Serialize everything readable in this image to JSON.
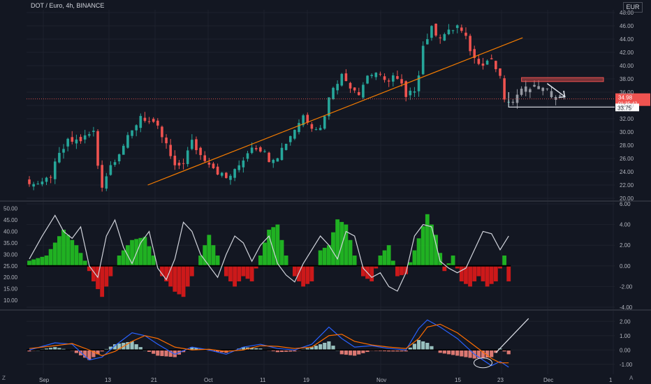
{
  "header": {
    "symbol_title": "DOT / Euro, 4h, BINANCE",
    "currency": "EUR",
    "left_corner": "Z",
    "right_corner": "A"
  },
  "colors": {
    "background": "#131722",
    "grid": "#1e222d",
    "up": "#26a69a",
    "down": "#ef5350",
    "trendline": "#f57c00",
    "hist_up": "#22c222",
    "hist_down": "#e11919",
    "osc_line": "#d1d4dc",
    "macd_line": "#2962ff",
    "signal_line": "#ff6d00"
  },
  "price_panel": {
    "y_ticks": [
      "48.00",
      "46.00",
      "44.00",
      "42.00",
      "40.00",
      "38.00",
      "36.00",
      "34.00",
      "32.00",
      "30.00",
      "28.00",
      "26.00",
      "24.00",
      "22.00",
      "20.00"
    ],
    "last_price": "34.98",
    "countdown": "01:35:42",
    "level_label": "33.75"
  },
  "osc_panel": {
    "left_ticks": [
      "50.00",
      "45.00",
      "40.00",
      "35.00",
      "30.00",
      "25.00",
      "20.00",
      "15.00",
      "10.00"
    ],
    "right_ticks": [
      "6.00",
      "4.00",
      "2.00",
      "0.00",
      "-2.00",
      "-4.00"
    ]
  },
  "macd_panel": {
    "right_ticks": [
      "2.00",
      "1.00",
      "0.00",
      "-1.00"
    ]
  },
  "time_axis": {
    "labels": [
      "Sep",
      "13",
      "21",
      "Oct",
      "11",
      "19",
      "Nov",
      "15",
      "23",
      "Dec",
      "1"
    ]
  },
  "chart_data": [
    {
      "type": "candlestick",
      "title": "DOT / Euro, 4h, BINANCE",
      "ylim": [
        20,
        48
      ],
      "x_labels": [
        "Sep",
        "13",
        "21",
        "Oct",
        "11",
        "19",
        "Nov",
        "15",
        "23",
        "Dec",
        "1"
      ],
      "close_path": [
        [
          0,
          22.5
        ],
        [
          3,
          22.0
        ],
        [
          5,
          23.5
        ],
        [
          7,
          26.5
        ],
        [
          9,
          28.5
        ],
        [
          12,
          28.8
        ],
        [
          15,
          30.0
        ],
        [
          16,
          25.0
        ],
        [
          17,
          22.0
        ],
        [
          19,
          25.0
        ],
        [
          21,
          27.0
        ],
        [
          24,
          30.0
        ],
        [
          26,
          32.5
        ],
        [
          28,
          31.5
        ],
        [
          30,
          30.5
        ],
        [
          32,
          28.0
        ],
        [
          34,
          24.5
        ],
        [
          36,
          25.5
        ],
        [
          38,
          28.5
        ],
        [
          40,
          26.5
        ],
        [
          42,
          25.5
        ],
        [
          44,
          24.0
        ],
        [
          46,
          23.0
        ],
        [
          48,
          24.0
        ],
        [
          50,
          26.0
        ],
        [
          52,
          28.0
        ],
        [
          54,
          27.5
        ],
        [
          56,
          26.0
        ],
        [
          58,
          26.5
        ],
        [
          60,
          28.5
        ],
        [
          62,
          30.5
        ],
        [
          64,
          32.5
        ],
        [
          66,
          31.0
        ],
        [
          68,
          30.5
        ],
        [
          70,
          35.0
        ],
        [
          71,
          37.0
        ],
        [
          73,
          38.5
        ],
        [
          75,
          37.0
        ],
        [
          77,
          36.0
        ],
        [
          79,
          38.5
        ],
        [
          81,
          39.0
        ],
        [
          83,
          37.5
        ],
        [
          85,
          38.5
        ],
        [
          87,
          37.0
        ],
        [
          88,
          35.0
        ],
        [
          90,
          36.5
        ],
        [
          91,
          39.0
        ],
        [
          92,
          43.0
        ],
        [
          94,
          45.5
        ],
        [
          96,
          44.5
        ],
        [
          98,
          45.0
        ],
        [
          100,
          46.0
        ],
        [
          102,
          44.0
        ],
        [
          104,
          41.0
        ],
        [
          106,
          40.5
        ],
        [
          108,
          41.0
        ],
        [
          110,
          38.0
        ],
        [
          111,
          35.0
        ],
        [
          112,
          34.0
        ],
        [
          115,
          36.0
        ],
        [
          117,
          37.0
        ],
        [
          120,
          36.5
        ],
        [
          122,
          35.5
        ],
        [
          125,
          35.0
        ]
      ],
      "trendline": [
        [
          28,
          22.0
        ],
        [
          112,
          43.0
        ]
      ],
      "resistance_zone": [
        37.6,
        38.2
      ],
      "support_level": 33.75,
      "last_price": 34.98
    },
    {
      "type": "histogram-oscillator",
      "left_ylim": [
        7,
        52
      ],
      "right_ylim": [
        -4,
        6
      ],
      "zero_level_left": 25,
      "histogram": [
        [
          0,
          0.5
        ],
        [
          4,
          1.0
        ],
        [
          8,
          3.5
        ],
        [
          11,
          2.0
        ],
        [
          13,
          0.5
        ],
        [
          15,
          -1.5
        ],
        [
          17,
          -3.0
        ],
        [
          19,
          -1.0
        ],
        [
          21,
          1.0
        ],
        [
          24,
          2.5
        ],
        [
          27,
          2.8
        ],
        [
          29,
          1.0
        ],
        [
          31,
          -1.0
        ],
        [
          34,
          -2.5
        ],
        [
          36,
          -3.0
        ],
        [
          38,
          -1.0
        ],
        [
          40,
          1.0
        ],
        [
          42,
          3.0
        ],
        [
          44,
          1.0
        ],
        [
          46,
          -1.0
        ],
        [
          48,
          -2.0
        ],
        [
          50,
          -1.0
        ],
        [
          52,
          -1.5
        ],
        [
          54,
          1.0
        ],
        [
          56,
          3.5
        ],
        [
          58,
          4.0
        ],
        [
          60,
          1.0
        ],
        [
          62,
          -1.0
        ],
        [
          64,
          -2.0
        ],
        [
          66,
          -1.5
        ],
        [
          68,
          1.5
        ],
        [
          70,
          2.0
        ],
        [
          72,
          4.5
        ],
        [
          74,
          4.0
        ],
        [
          76,
          1.0
        ],
        [
          78,
          -1.0
        ],
        [
          80,
          -1.5
        ],
        [
          82,
          1.0
        ],
        [
          84,
          2.0
        ],
        [
          86,
          -1.0
        ],
        [
          88,
          -0.8
        ],
        [
          90,
          1.5
        ],
        [
          93,
          5.0
        ],
        [
          95,
          3.0
        ],
        [
          97,
          -0.5
        ],
        [
          99,
          1.0
        ],
        [
          101,
          -1.5
        ],
        [
          103,
          -2.0
        ],
        [
          105,
          -1.0
        ],
        [
          107,
          -2.0
        ],
        [
          109,
          -1.5
        ],
        [
          111,
          1.0
        ],
        [
          112,
          -1.5
        ]
      ],
      "oscillator_line": [
        [
          0,
          28
        ],
        [
          3,
          38
        ],
        [
          6,
          47
        ],
        [
          8,
          40
        ],
        [
          10,
          37
        ],
        [
          12,
          42
        ],
        [
          14,
          25
        ],
        [
          16,
          20
        ],
        [
          18,
          38
        ],
        [
          20,
          45
        ],
        [
          22,
          33
        ],
        [
          24,
          26
        ],
        [
          26,
          35
        ],
        [
          28,
          40
        ],
        [
          30,
          24
        ],
        [
          32,
          19
        ],
        [
          34,
          28
        ],
        [
          36,
          44
        ],
        [
          38,
          40
        ],
        [
          40,
          30
        ],
        [
          42,
          25
        ],
        [
          44,
          20
        ],
        [
          46,
          30
        ],
        [
          48,
          38
        ],
        [
          50,
          35
        ],
        [
          52,
          27
        ],
        [
          54,
          34
        ],
        [
          56,
          38
        ],
        [
          58,
          26
        ],
        [
          60,
          21
        ],
        [
          62,
          18
        ],
        [
          64,
          26
        ],
        [
          66,
          32
        ],
        [
          68,
          38
        ],
        [
          70,
          34
        ],
        [
          72,
          28
        ],
        [
          74,
          40
        ],
        [
          76,
          38
        ],
        [
          78,
          24
        ],
        [
          80,
          20
        ],
        [
          82,
          22
        ],
        [
          84,
          16
        ],
        [
          86,
          14
        ],
        [
          88,
          22
        ],
        [
          90,
          38
        ],
        [
          92,
          43
        ],
        [
          94,
          42
        ],
        [
          96,
          27
        ],
        [
          98,
          24
        ],
        [
          100,
          22
        ],
        [
          102,
          24
        ],
        [
          104,
          32
        ],
        [
          106,
          40
        ],
        [
          108,
          39
        ],
        [
          110,
          32
        ],
        [
          112,
          38
        ]
      ]
    },
    {
      "type": "macd",
      "ylim": [
        -1.5,
        2.5
      ],
      "macd": [
        [
          0,
          0.0
        ],
        [
          6,
          0.5
        ],
        [
          10,
          0.4
        ],
        [
          14,
          -0.7
        ],
        [
          17,
          -0.5
        ],
        [
          20,
          0.3
        ],
        [
          24,
          1.2
        ],
        [
          27,
          1.0
        ],
        [
          30,
          0.4
        ],
        [
          34,
          -0.3
        ],
        [
          38,
          0.2
        ],
        [
          42,
          0.0
        ],
        [
          46,
          -0.3
        ],
        [
          50,
          0.2
        ],
        [
          54,
          0.4
        ],
        [
          58,
          0.1
        ],
        [
          62,
          0.0
        ],
        [
          66,
          0.4
        ],
        [
          70,
          1.6
        ],
        [
          73,
          0.8
        ],
        [
          76,
          0.2
        ],
        [
          80,
          0.3
        ],
        [
          84,
          0.1
        ],
        [
          88,
          0.0
        ],
        [
          91,
          1.5
        ],
        [
          93,
          2.1
        ],
        [
          96,
          1.6
        ],
        [
          100,
          0.8
        ],
        [
          104,
          -0.3
        ],
        [
          108,
          -1.1
        ],
        [
          110,
          -0.8
        ],
        [
          112,
          -1.2
        ]
      ],
      "signal": [
        [
          0,
          0.1
        ],
        [
          6,
          0.3
        ],
        [
          10,
          0.45
        ],
        [
          14,
          0.0
        ],
        [
          17,
          -0.4
        ],
        [
          20,
          -0.1
        ],
        [
          24,
          0.6
        ],
        [
          27,
          1.0
        ],
        [
          30,
          0.8
        ],
        [
          34,
          0.2
        ],
        [
          38,
          0.0
        ],
        [
          42,
          0.05
        ],
        [
          46,
          -0.1
        ],
        [
          50,
          0.0
        ],
        [
          54,
          0.3
        ],
        [
          58,
          0.25
        ],
        [
          62,
          0.1
        ],
        [
          66,
          0.2
        ],
        [
          70,
          1.0
        ],
        [
          73,
          1.1
        ],
        [
          76,
          0.6
        ],
        [
          80,
          0.35
        ],
        [
          84,
          0.2
        ],
        [
          88,
          0.1
        ],
        [
          91,
          0.8
        ],
        [
          93,
          1.6
        ],
        [
          96,
          1.8
        ],
        [
          100,
          1.2
        ],
        [
          104,
          0.3
        ],
        [
          108,
          -0.6
        ],
        [
          110,
          -0.9
        ],
        [
          112,
          -0.9
        ]
      ]
    }
  ]
}
